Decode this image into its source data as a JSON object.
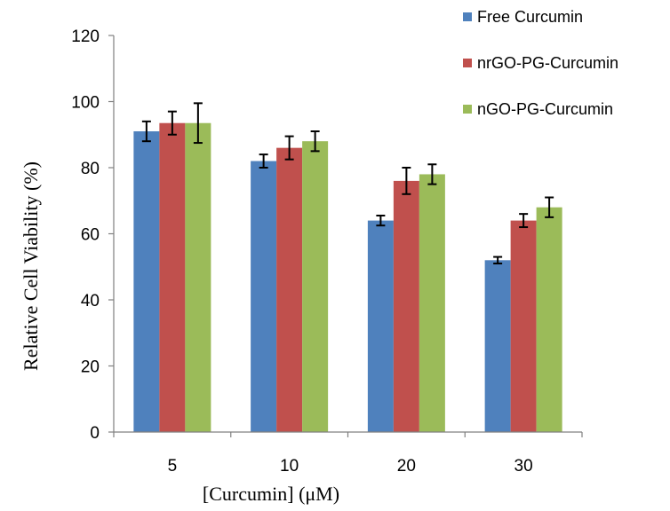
{
  "chart_data": {
    "type": "bar",
    "title": "",
    "xlabel": "[Curcumin] (μM)",
    "ylabel": "Relative Cell  Viability (%)",
    "categories": [
      "5",
      "10",
      "20",
      "30"
    ],
    "ylim": [
      0,
      120
    ],
    "yticks": [
      0,
      20,
      40,
      60,
      80,
      100,
      120
    ],
    "grid": false,
    "legend_position": "top-right",
    "series": [
      {
        "name": "Free Curcumin",
        "color": "#4F81BD",
        "values": [
          91,
          82,
          64,
          52
        ],
        "errors": [
          3,
          2,
          1.5,
          1
        ]
      },
      {
        "name": "nrGO-PG-Curcumin",
        "color": "#C0504D",
        "values": [
          93.5,
          86,
          76,
          64
        ],
        "errors": [
          3.5,
          3.5,
          4,
          2
        ]
      },
      {
        "name": "nGO-PG-Curcumin",
        "color": "#9BBB59",
        "values": [
          93.5,
          88,
          78,
          68
        ],
        "errors": [
          6,
          3,
          3,
          3
        ]
      }
    ]
  }
}
